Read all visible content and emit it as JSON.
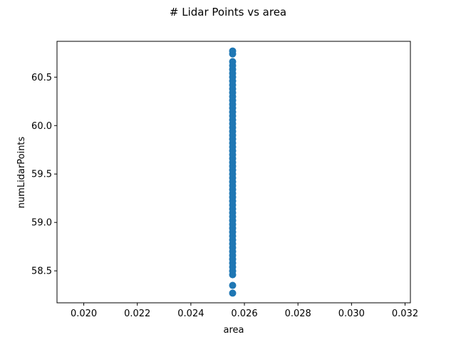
{
  "chart_data": {
    "type": "scatter",
    "title": "# Lidar Points vs area",
    "xlabel": "area",
    "ylabel": "numLidarPoints",
    "xlim": [
      0.019,
      0.0322
    ],
    "ylim": [
      58.17,
      60.87
    ],
    "x_ticks": [
      0.02,
      0.022,
      0.024,
      0.026,
      0.028,
      0.03,
      0.032
    ],
    "x_tick_labels": [
      "0.020",
      "0.022",
      "0.024",
      "0.026",
      "0.028",
      "0.030",
      "0.032"
    ],
    "y_ticks": [
      58.5,
      59.0,
      59.5,
      60.0,
      60.5
    ],
    "y_tick_labels": [
      "58.5",
      "59.0",
      "59.5",
      "60.0",
      "60.5"
    ],
    "grid": false,
    "marker_color": "#1f77b4",
    "series": [
      {
        "x_constant": 0.02556,
        "y": [
          58.27,
          58.35,
          58.46,
          58.5,
          58.54,
          58.58,
          58.62,
          58.66,
          58.7,
          58.74,
          58.78,
          58.82,
          58.86,
          58.9,
          58.94,
          58.98,
          59.02,
          59.06,
          59.1,
          59.14,
          59.18,
          59.22,
          59.26,
          59.3,
          59.34,
          59.38,
          59.42,
          59.46,
          59.5,
          59.54,
          59.58,
          59.62,
          59.66,
          59.7,
          59.74,
          59.78,
          59.82,
          59.86,
          59.9,
          59.94,
          59.98,
          60.02,
          60.06,
          60.1,
          60.14,
          60.18,
          60.22,
          60.26,
          60.3,
          60.34,
          60.38,
          60.42,
          60.46,
          60.5,
          60.54,
          60.58,
          60.62,
          60.66,
          60.74,
          60.77
        ]
      }
    ]
  }
}
